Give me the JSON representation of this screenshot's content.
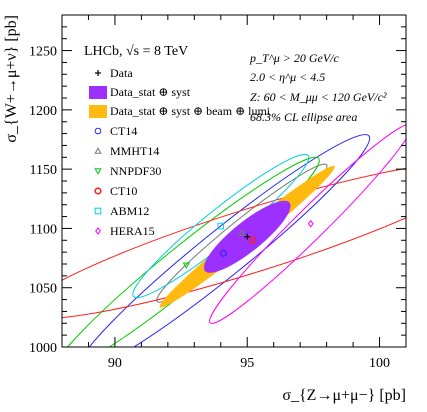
{
  "chart_data": {
    "type": "scatter",
    "title": "",
    "xlabel": "σ_{Z→μ+μ−} [pb]",
    "ylabel": "σ_{W+→μ+ν} [pb]",
    "xlim": [
      88,
      101
    ],
    "ylim": [
      1000,
      1280
    ],
    "x_ticks": [
      "90",
      "95",
      "100"
    ],
    "y_ticks": [
      "1000",
      "1050",
      "1100",
      "1150",
      "1200",
      "1250"
    ],
    "grid": false,
    "legend_position": "top-left",
    "experiment_label": "LHCb, √s = 8 TeV",
    "info_lines": [
      "p_T^μ > 20 GeV/c",
      "2.0 < η^μ < 4.5",
      "Z: 60 < M_μμ < 120 GeV/c²",
      "68.3% CL ellipse area"
    ],
    "data_point": {
      "name": "Data",
      "x": 95.0,
      "y": 1093,
      "color": "#000000"
    },
    "data_ellipses": [
      {
        "name": "Data_stat ⊕ syst",
        "cx": 95.0,
        "cy": 1093,
        "rx": 1.6,
        "ry": 16,
        "slope": 18,
        "color": "#9b30ff"
      },
      {
        "name": "Data_stat ⊕ syst ⊕ beam ⊕ lumi",
        "cx": 95.0,
        "cy": 1093,
        "rx": 3.3,
        "ry": 10,
        "slope": 18,
        "color": "#ffb90f"
      }
    ],
    "series": [
      {
        "name": "CT14",
        "marker": "circle",
        "color": "#2323ff",
        "x": 94.1,
        "y": 1079,
        "rx": 5.5,
        "ry": 25,
        "slope": 18
      },
      {
        "name": "MMHT14",
        "marker": "triangle-up",
        "color": "#777777",
        "x": 94.8,
        "y": 1096,
        "rx": 3.2,
        "ry": 14,
        "slope": 18
      },
      {
        "name": "NNPDF30",
        "marker": "triangle-down",
        "color": "#00cc00",
        "x": 92.7,
        "y": 1069,
        "rx": 5.0,
        "ry": 22,
        "slope": 18
      },
      {
        "name": "CT10",
        "marker": "circle-filled-cross",
        "color": "#ff2020",
        "x": 95.2,
        "y": 1090,
        "rx": 8.7,
        "ry": 28,
        "slope": 7
      },
      {
        "name": "ABM12",
        "marker": "square",
        "color": "#00d0e0",
        "x": 94.0,
        "y": 1102,
        "rx": 3.3,
        "ry": 18,
        "slope": 18
      },
      {
        "name": "HERA15",
        "marker": "diamond",
        "color": "#ff00ff",
        "x": 97.4,
        "y": 1104,
        "rx": 3.8,
        "ry": 18,
        "slope": 22
      }
    ]
  }
}
